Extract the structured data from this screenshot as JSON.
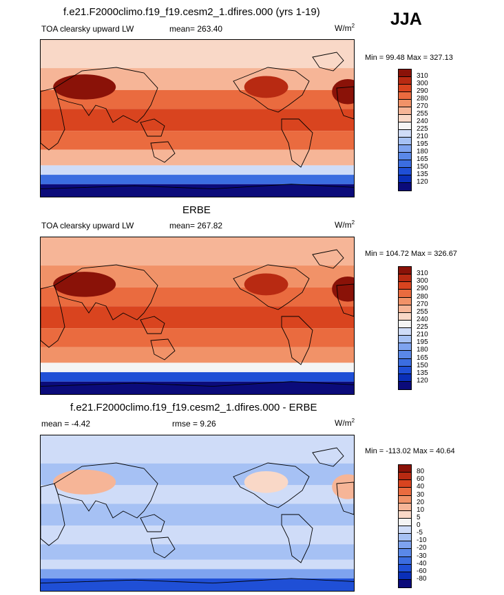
{
  "season": "JJA",
  "panels": [
    {
      "title": "f.e21.F2000climo.f19_f19.cesm2_1.dfires.000 (yrs 1-19)",
      "variable": "TOA clearsky upward LW",
      "stat_text": "mean= 263.40",
      "unit_base": "W/m",
      "unit_exp": "2",
      "minmax": "Min =  99.48 Max = 327.13"
    },
    {
      "title": "ERBE",
      "variable": "TOA clearsky upward LW",
      "stat_text": "mean= 267.82",
      "unit_base": "W/m",
      "unit_exp": "2",
      "minmax": "Min = 104.72 Max = 326.67"
    },
    {
      "title": "f.e21.F2000climo.f19_f19.cesm2_1.dfires.000 - ERBE",
      "variable": "mean =  -4.42",
      "stat_text": "rmse =   9.26",
      "unit_base": "W/m",
      "unit_exp": "2",
      "minmax": "Min = -113.02 Max =  40.64"
    }
  ],
  "chart_data": [
    {
      "type": "heatmap",
      "title": "f.e21.F2000climo.f19_f19.cesm2_1.dfires.000 (yrs 1-19)",
      "variable": "TOA clearsky upward LW",
      "mean": 263.4,
      "min": 99.48,
      "max": 327.13,
      "units": "W/m2",
      "colorbar_levels": [
        120,
        135,
        150,
        165,
        180,
        195,
        210,
        225,
        240,
        255,
        270,
        280,
        290,
        300,
        310
      ],
      "colorbar_colors": [
        "#0b0b7a",
        "#0a2fb8",
        "#1f4fd6",
        "#3b6de0",
        "#5a88e8",
        "#7ea3ef",
        "#a6c1f4",
        "#cfdcf8",
        "#f4f4f4",
        "#f9d8c7",
        "#f6b597",
        "#f19268",
        "#ea6b3f",
        "#d9441f",
        "#b82a12",
        "#8a1208"
      ],
      "map_colors": {
        "deep_south": "#0b0b7a",
        "south_blue": "#3b6de0",
        "south_pale": "#cfdcf8",
        "midlat": "#f6b597",
        "subtrop": "#ea6b3f",
        "tropics": "#d9441f",
        "hot": "#b82a12",
        "polar_north": "#f9d8c7",
        "land_hot": "#8a1208"
      }
    },
    {
      "type": "heatmap",
      "title": "ERBE",
      "variable": "TOA clearsky upward LW",
      "mean": 267.82,
      "min": 104.72,
      "max": 326.67,
      "units": "W/m2",
      "colorbar_levels": [
        120,
        135,
        150,
        165,
        180,
        195,
        210,
        225,
        240,
        255,
        270,
        280,
        290,
        300,
        310
      ],
      "colorbar_colors": [
        "#0b0b7a",
        "#0a2fb8",
        "#1f4fd6",
        "#3b6de0",
        "#5a88e8",
        "#7ea3ef",
        "#a6c1f4",
        "#cfdcf8",
        "#f4f4f4",
        "#f9d8c7",
        "#f6b597",
        "#f19268",
        "#ea6b3f",
        "#d9441f",
        "#b82a12",
        "#8a1208"
      ],
      "map_colors": {
        "deep_south": "#0b0b7a",
        "south_blue": "#1f4fd6",
        "south_pale": "#f4f4f4",
        "midlat": "#f19268",
        "subtrop": "#ea6b3f",
        "tropics": "#d9441f",
        "hot": "#b82a12",
        "polar_north": "#f6b597",
        "land_hot": "#8a1208"
      }
    },
    {
      "type": "heatmap",
      "title": "f.e21.F2000climo.f19_f19.cesm2_1.dfires.000 - ERBE",
      "mean": -4.42,
      "rmse": 9.26,
      "min": -113.02,
      "max": 40.64,
      "units": "W/m2",
      "colorbar_levels": [
        -80,
        -60,
        -40,
        -30,
        -20,
        -10,
        -5,
        0,
        5,
        10,
        20,
        30,
        40,
        60,
        80
      ],
      "colorbar_colors": [
        "#0b0b7a",
        "#0a2fb8",
        "#1f4fd6",
        "#3b6de0",
        "#5a88e8",
        "#7ea3ef",
        "#a6c1f4",
        "#cfdcf8",
        "#f4f4f4",
        "#f9d8c7",
        "#f6b597",
        "#f19268",
        "#ea6b3f",
        "#d9441f",
        "#b82a12",
        "#8a1208"
      ],
      "map_colors": {
        "deep_south": "#1f4fd6",
        "south_blue": "#7ea3ef",
        "south_pale": "#cfdcf8",
        "midlat": "#a6c1f4",
        "subtrop": "#cfdcf8",
        "tropics": "#a6c1f4",
        "hot": "#f9d8c7",
        "polar_north": "#cfdcf8",
        "land_hot": "#f6b597"
      }
    }
  ]
}
